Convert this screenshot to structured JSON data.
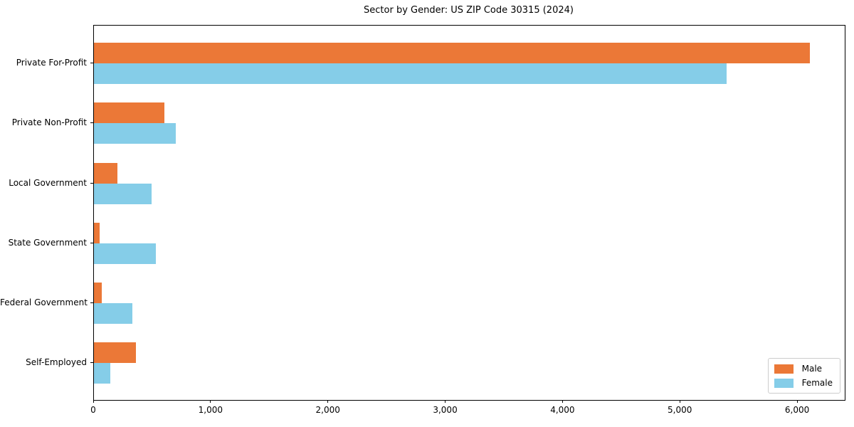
{
  "chart_data": {
    "type": "bar",
    "orientation": "horizontal",
    "title": "Sector by Gender: US ZIP Code 30315 (2024)",
    "categories": [
      "Private For-Profit",
      "Private Non-Profit",
      "Local Government",
      "State Government",
      "Federal Government",
      "Self-Employed"
    ],
    "series": [
      {
        "name": "Male",
        "color": "#eb7837",
        "values": [
          6100,
          600,
          200,
          50,
          65,
          360
        ]
      },
      {
        "name": "Female",
        "color": "#85cde8",
        "values": [
          5390,
          700,
          490,
          530,
          330,
          140
        ]
      }
    ],
    "xlabel": "",
    "ylabel": "",
    "xlim": [
      0,
      6400
    ],
    "xticks": [
      0,
      1000,
      2000,
      3000,
      4000,
      5000,
      6000
    ],
    "xtick_labels": [
      "0",
      "1,000",
      "2,000",
      "3,000",
      "4,000",
      "5,000",
      "6,000"
    ],
    "grid": false,
    "background_color": "#ffffff",
    "axis_color": "#000000",
    "legend": {
      "position": "lower right",
      "entries": [
        "Male",
        "Female"
      ]
    }
  }
}
